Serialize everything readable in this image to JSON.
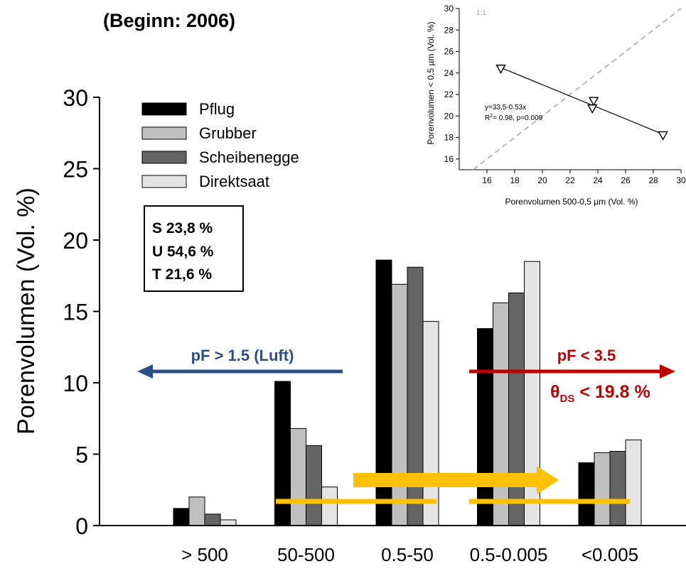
{
  "header": {
    "text": "(Beginn: 2006)"
  },
  "soil_box": {
    "lines": [
      "S 23,8 %",
      "U 54,6 %",
      "T 21,6 %"
    ]
  },
  "arrows": {
    "left": {
      "label": "pF > 1.5 (Luft)",
      "color": "#2b4f86"
    },
    "right": {
      "label": "pF < 3.5",
      "label2_main": "θ",
      "label2_sub": "DS",
      "label2_rest": " < 19.8 %",
      "color": "#c00000"
    },
    "yellow_color": "#ffc000"
  },
  "chart_data": [
    {
      "type": "bar",
      "ylabel": "Porenvolumen (Vol. %)",
      "xlabel": "",
      "ylim": [
        0,
        30
      ],
      "yticks": [
        0,
        5,
        10,
        15,
        20,
        25,
        30
      ],
      "categories": [
        "> 500",
        "50-500",
        "0.5-50",
        "0.5-0.005",
        "<0.005"
      ],
      "legend_position": "top-left",
      "series": [
        {
          "name": "Pflug",
          "color": "#000000",
          "values": [
            1.2,
            10.1,
            18.6,
            13.8,
            4.4
          ]
        },
        {
          "name": "Grubber",
          "color": "#c0c0c0",
          "values": [
            2.0,
            6.8,
            16.9,
            15.6,
            5.1
          ]
        },
        {
          "name": "Scheibenegge",
          "color": "#646464",
          "values": [
            0.8,
            5.6,
            18.1,
            16.3,
            5.2
          ]
        },
        {
          "name": "Direktsaat",
          "color": "#e4e4e4",
          "values": [
            0.4,
            2.7,
            14.3,
            18.5,
            6.0
          ]
        }
      ]
    },
    {
      "type": "scatter",
      "xlabel": "Porenvolumen 500-0,5 µm (Vol. %)",
      "ylabel": "Porenvolumen < 0,5 µm (Vol. %)",
      "xlim": [
        14,
        30
      ],
      "ylim": [
        15,
        30
      ],
      "xticks": [
        16,
        18,
        20,
        22,
        24,
        26,
        28,
        30
      ],
      "yticks": [
        16,
        18,
        20,
        22,
        24,
        26,
        28,
        30
      ],
      "points": [
        {
          "x": 17.0,
          "y": 24.4
        },
        {
          "x": 23.7,
          "y": 21.4
        },
        {
          "x": 23.6,
          "y": 20.7
        },
        {
          "x": 28.7,
          "y": 18.2
        }
      ],
      "fit_line": {
        "x": [
          17.0,
          28.7
        ],
        "y": [
          24.5,
          18.3
        ]
      },
      "reference_line_label": "1:1",
      "annotation_line1": "y=33,5-0.53x",
      "annotation_r2_main": "R",
      "annotation_r2_sup": "2",
      "annotation_r2_rest": "= 0.98, p=0.009"
    }
  ]
}
